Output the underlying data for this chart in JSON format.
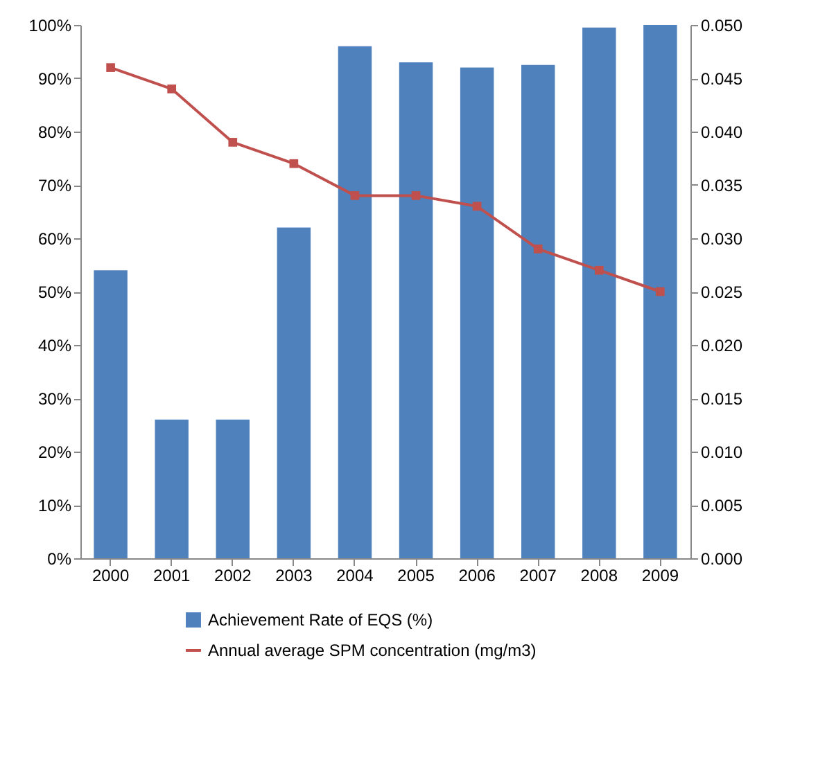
{
  "chart_data": {
    "type": "bar",
    "categories": [
      "2000",
      "2001",
      "2002",
      "2003",
      "2004",
      "2005",
      "2006",
      "2007",
      "2008",
      "2009"
    ],
    "series": [
      {
        "name": "Achievement Rate of EQS (%)",
        "color": "#4f81bd",
        "values": [
          54,
          26,
          26,
          62,
          96,
          93,
          92,
          92.5,
          99.5,
          100
        ]
      },
      {
        "name": "Annual average SPM concentration (mg/m3)",
        "type": "line",
        "axis": "y2",
        "color": "#c0504d",
        "marker": "square",
        "values": [
          0.046,
          0.044,
          0.039,
          0.037,
          0.034,
          0.034,
          0.033,
          0.029,
          0.027,
          0.025
        ]
      }
    ],
    "ylim": [
      0,
      100
    ],
    "yticks": [
      {
        "value": 0,
        "label": "0%"
      },
      {
        "value": 10,
        "label": "10%"
      },
      {
        "value": 20,
        "label": "20%"
      },
      {
        "value": 30,
        "label": "30%"
      },
      {
        "value": 40,
        "label": "40%"
      },
      {
        "value": 50,
        "label": "50%"
      },
      {
        "value": 60,
        "label": "60%"
      },
      {
        "value": 70,
        "label": "70%"
      },
      {
        "value": 80,
        "label": "80%"
      },
      {
        "value": 90,
        "label": "90%"
      },
      {
        "value": 100,
        "label": "100%"
      }
    ],
    "y2lim": [
      0,
      0.05
    ],
    "y2ticks": [
      {
        "value": 0,
        "label": "0.000"
      },
      {
        "value": 0.005,
        "label": "0.005"
      },
      {
        "value": 0.01,
        "label": "0.010"
      },
      {
        "value": 0.015,
        "label": "0.015"
      },
      {
        "value": 0.02,
        "label": "0.020"
      },
      {
        "value": 0.025,
        "label": "0.025"
      },
      {
        "value": 0.03,
        "label": "0.030"
      },
      {
        "value": 0.035,
        "label": "0.035"
      },
      {
        "value": 0.04,
        "label": "0.040"
      },
      {
        "value": 0.045,
        "label": "0.045"
      },
      {
        "value": 0.05,
        "label": "0.050"
      }
    ],
    "grid": false,
    "legend": "bottom"
  }
}
